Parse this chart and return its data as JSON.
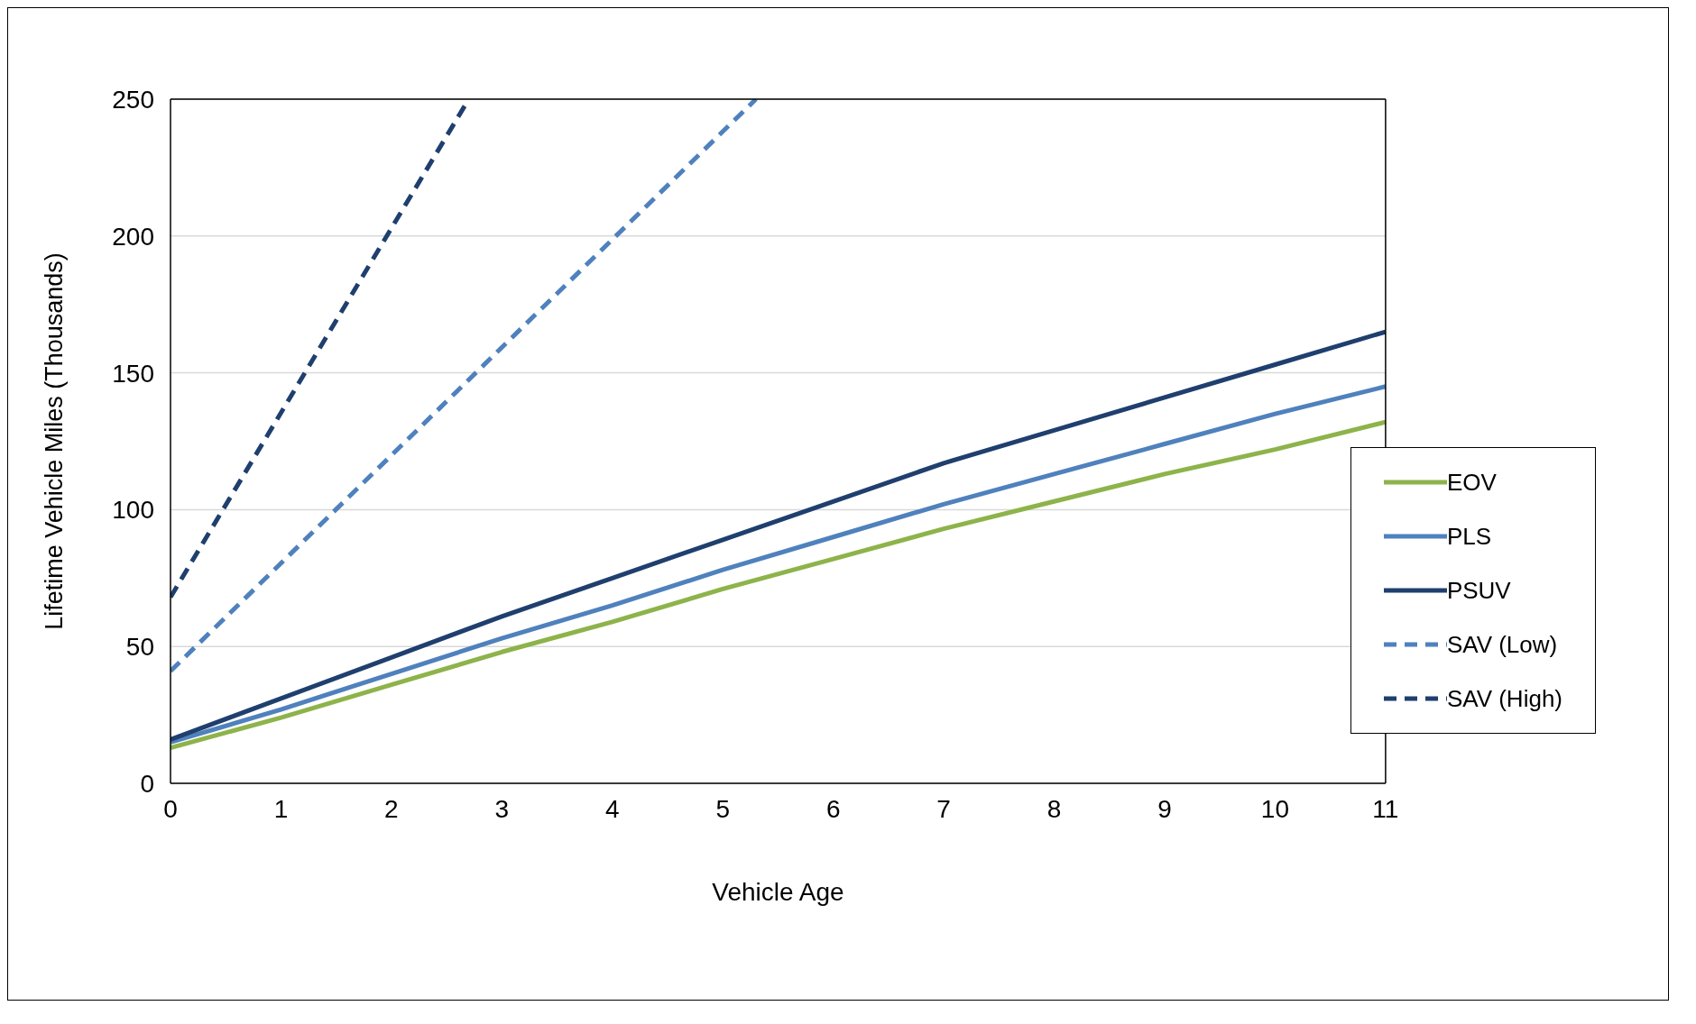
{
  "chart_data": {
    "type": "line",
    "xlabel": "Vehicle Age",
    "ylabel": "Lifetime Vehicle Miles (Thousands)",
    "x": [
      0,
      1,
      2,
      3,
      4,
      5,
      6,
      7,
      8,
      9,
      10,
      11
    ],
    "xlim": [
      0,
      11
    ],
    "xticks": [
      0,
      1,
      2,
      3,
      4,
      5,
      6,
      7,
      8,
      9,
      10,
      11
    ],
    "ylim": [
      0,
      250
    ],
    "yticks": [
      0,
      50,
      100,
      150,
      200,
      250
    ],
    "grid": "y",
    "legend": "bottom right",
    "marker": "none",
    "series": [
      {
        "name": "EOV",
        "color": "#8db34a",
        "line_style": "solid",
        "values": [
          13,
          24,
          36,
          48,
          59,
          71,
          82,
          93,
          103,
          113,
          122,
          132
        ]
      },
      {
        "name": "PLS",
        "color": "#4f81bd",
        "line_style": "solid",
        "values": [
          15,
          27,
          40,
          53,
          65,
          78,
          90,
          102,
          113,
          124,
          135,
          145
        ]
      },
      {
        "name": "PSUV",
        "color": "#1f3f6e",
        "line_style": "solid",
        "values": [
          16,
          31,
          46,
          61,
          75,
          89,
          103,
          117,
          129,
          141,
          153,
          165
        ]
      },
      {
        "name": "SAV (Low)",
        "color": "#4f81bd",
        "line_style": "dashed",
        "x": [
          0,
          5.3
        ],
        "values": [
          41,
          250
        ]
      },
      {
        "name": "SAV (High)",
        "color": "#1f3f6e",
        "line_style": "dashed",
        "x": [
          0,
          2.7
        ],
        "values": [
          68,
          250
        ]
      }
    ]
  }
}
